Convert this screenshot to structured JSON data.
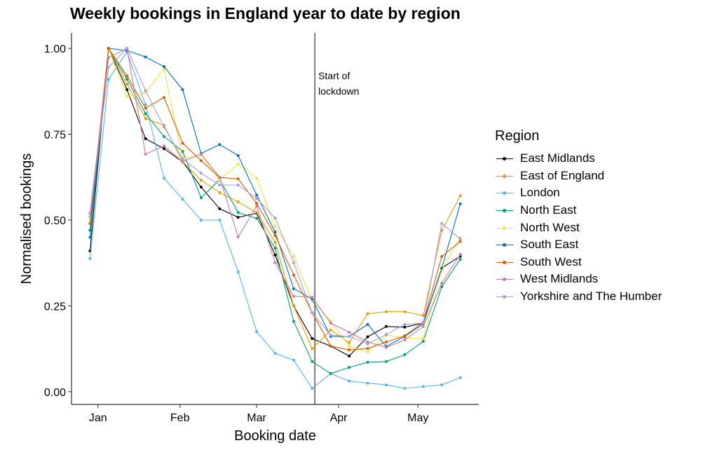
{
  "chart_data": {
    "type": "line",
    "title": "Weekly bookings in England year to date by region",
    "xlabel": "Booking date",
    "ylabel": "Normalised bookings",
    "xlim": [
      "2019-12-22",
      "2020-05-24"
    ],
    "ylim": [
      -0.037,
      1.045
    ],
    "x_ticks": [
      {
        "date": "2020-01-01",
        "label": "Jan"
      },
      {
        "date": "2020-02-01",
        "label": "Feb"
      },
      {
        "date": "2020-03-01",
        "label": "Mar"
      },
      {
        "date": "2020-04-01",
        "label": "Apr"
      },
      {
        "date": "2020-05-01",
        "label": "May"
      }
    ],
    "y_ticks": [
      0,
      0.25,
      0.5,
      0.75,
      1.0
    ],
    "y_tick_labels": [
      "0.00",
      "0.25",
      "0.50",
      "0.75",
      "1.00"
    ],
    "grid": false,
    "legend": {
      "title": "Region",
      "position": "right"
    },
    "annotation": {
      "date": "2020-03-23",
      "line1": "Start of",
      "line2": "lockdown"
    },
    "x": [
      "2019-12-29",
      "2020-01-05",
      "2020-01-12",
      "2020-01-19",
      "2020-01-26",
      "2020-02-02",
      "2020-02-09",
      "2020-02-16",
      "2020-02-23",
      "2020-03-01",
      "2020-03-08",
      "2020-03-15",
      "2020-03-22",
      "2020-03-29",
      "2020-04-05",
      "2020-04-12",
      "2020-04-19",
      "2020-04-26",
      "2020-05-03",
      "2020-05-10",
      "2020-05-17"
    ],
    "series": [
      {
        "name": "East Midlands",
        "color": "#000000",
        "values": [
          0.41,
          1.0,
          0.88,
          0.737,
          0.708,
          0.67,
          0.596,
          0.533,
          0.508,
          0.52,
          0.398,
          0.25,
          0.155,
          0.133,
          0.104,
          0.16,
          0.19,
          0.188,
          0.2,
          0.36,
          0.395
        ]
      },
      {
        "name": "East of England",
        "color": "#E69F00",
        "values": [
          0.47,
          1.0,
          0.896,
          0.796,
          0.776,
          0.67,
          0.616,
          0.58,
          0.553,
          0.522,
          0.435,
          0.25,
          0.125,
          0.18,
          0.143,
          0.227,
          0.233,
          0.233,
          0.222,
          0.47,
          0.571
        ]
      },
      {
        "name": "London",
        "color": "#56B4E9",
        "values": [
          0.388,
          0.91,
          0.99,
          0.836,
          0.622,
          0.561,
          0.5,
          0.5,
          0.349,
          0.175,
          0.112,
          0.092,
          0.01,
          0.053,
          0.031,
          0.025,
          0.02,
          0.01,
          0.015,
          0.02,
          0.041
        ]
      },
      {
        "name": "North East",
        "color": "#009E73",
        "values": [
          0.47,
          1.0,
          0.91,
          0.81,
          0.743,
          0.7,
          0.565,
          0.618,
          0.522,
          0.505,
          0.418,
          0.205,
          0.088,
          0.053,
          0.071,
          0.086,
          0.088,
          0.108,
          0.147,
          0.306,
          0.386
        ]
      },
      {
        "name": "North West",
        "color": "#F0E442",
        "values": [
          0.5,
          1.0,
          0.86,
          0.872,
          0.94,
          0.68,
          0.69,
          0.617,
          0.663,
          0.622,
          0.482,
          0.394,
          0.265,
          0.206,
          0.133,
          0.116,
          0.165,
          0.157,
          0.155,
          0.355,
          0.45
        ]
      },
      {
        "name": "South East",
        "color": "#0072B2",
        "values": [
          0.45,
          1.0,
          0.994,
          0.975,
          0.947,
          0.88,
          0.694,
          0.72,
          0.688,
          0.573,
          0.465,
          0.3,
          0.27,
          0.161,
          0.161,
          0.196,
          0.132,
          0.161,
          0.198,
          0.36,
          0.547
        ]
      },
      {
        "name": "South West",
        "color": "#D55E00",
        "values": [
          0.49,
          1.0,
          0.92,
          0.826,
          0.857,
          0.724,
          0.673,
          0.624,
          0.62,
          0.549,
          0.455,
          0.34,
          0.23,
          0.133,
          0.122,
          0.126,
          0.145,
          0.163,
          0.202,
          0.394,
          0.438
        ]
      },
      {
        "name": "West Midlands",
        "color": "#CC79A7",
        "values": [
          0.52,
          0.973,
          1.0,
          0.692,
          0.716,
          0.67,
          0.692,
          0.625,
          0.451,
          0.541,
          0.376,
          0.278,
          0.275,
          0.2,
          0.173,
          0.145,
          0.129,
          0.151,
          0.19,
          0.316,
          0.4
        ]
      },
      {
        "name": "Yorkshire and The Humber",
        "color": "#A99BDB",
        "values": [
          0.51,
          0.945,
          1.0,
          0.877,
          0.771,
          0.678,
          0.637,
          0.602,
          0.602,
          0.563,
          0.506,
          0.376,
          0.23,
          0.165,
          0.161,
          0.139,
          0.167,
          0.196,
          0.2,
          0.49,
          0.445
        ]
      }
    ]
  }
}
